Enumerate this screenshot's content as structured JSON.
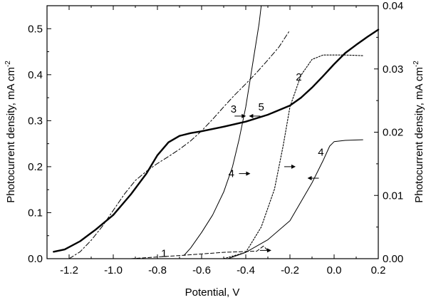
{
  "chart_data": {
    "type": "line",
    "title": "",
    "xlabel": "Potential, V",
    "ylabel_left": "Photocurrent density, mA cm",
    "ylabel_right": "Photocurrent density, mA cm",
    "ylabel_sup": "-2",
    "xlim": [
      -1.3,
      0.2
    ],
    "ylim_left": [
      0,
      0.55
    ],
    "ylim_right": [
      0,
      0.04
    ],
    "x_ticks": [
      "-1.2",
      "-1.0",
      "-0.8",
      "-0.6",
      "-0.4",
      "-0.2",
      "0.0",
      "0.2"
    ],
    "y_ticks_left": [
      "0.0",
      "0.1",
      "0.2",
      "0.3",
      "0.4",
      "0.5"
    ],
    "y_ticks_right": [
      "0.00",
      "0.01",
      "0.02",
      "0.03",
      "0.04"
    ],
    "grid": false,
    "legend": "none",
    "series": [
      {
        "axis": "left",
        "style": "thick",
        "points": [
          [
            -1.27,
            0.015
          ],
          [
            -1.22,
            0.02
          ],
          [
            -1.15,
            0.038
          ],
          [
            -1.08,
            0.063
          ],
          [
            -1.0,
            0.095
          ],
          [
            -0.92,
            0.14
          ],
          [
            -0.85,
            0.185
          ],
          [
            -0.8,
            0.225
          ],
          [
            -0.75,
            0.253
          ],
          [
            -0.7,
            0.267
          ],
          [
            -0.65,
            0.273
          ],
          [
            -0.6,
            0.277
          ],
          [
            -0.5,
            0.287
          ],
          [
            -0.4,
            0.298
          ],
          [
            -0.3,
            0.313
          ],
          [
            -0.2,
            0.333
          ],
          [
            -0.15,
            0.35
          ],
          [
            -0.1,
            0.372
          ],
          [
            -0.05,
            0.397
          ],
          [
            0.0,
            0.423
          ],
          [
            0.05,
            0.447
          ],
          [
            0.1,
            0.465
          ],
          [
            0.15,
            0.482
          ],
          [
            0.2,
            0.498
          ]
        ]
      },
      {
        "axis": "left",
        "style": "dash-dot",
        "points": [
          [
            -1.2,
            0.0
          ],
          [
            -1.15,
            0.015
          ],
          [
            -1.1,
            0.04
          ],
          [
            -1.05,
            0.07
          ],
          [
            -1.0,
            0.105
          ],
          [
            -0.95,
            0.14
          ],
          [
            -0.9,
            0.17
          ],
          [
            -0.85,
            0.19
          ],
          [
            -0.8,
            0.207
          ],
          [
            -0.75,
            0.222
          ],
          [
            -0.7,
            0.238
          ],
          [
            -0.65,
            0.256
          ],
          [
            -0.6,
            0.278
          ],
          [
            -0.55,
            0.303
          ],
          [
            -0.5,
            0.33
          ],
          [
            -0.45,
            0.356
          ],
          [
            -0.4,
            0.38
          ],
          [
            -0.35,
            0.405
          ],
          [
            -0.3,
            0.432
          ],
          [
            -0.25,
            0.46
          ],
          [
            -0.2,
            0.497
          ]
        ]
      },
      {
        "axis": "left",
        "style": "thin",
        "points": [
          [
            -0.68,
            0.007
          ],
          [
            -0.65,
            0.023
          ],
          [
            -0.6,
            0.057
          ],
          [
            -0.55,
            0.095
          ],
          [
            -0.5,
            0.145
          ],
          [
            -0.46,
            0.2
          ],
          [
            -0.43,
            0.26
          ],
          [
            -0.4,
            0.33
          ],
          [
            -0.38,
            0.39
          ],
          [
            -0.36,
            0.45
          ],
          [
            -0.34,
            0.51
          ],
          [
            -0.33,
            0.55
          ]
        ]
      },
      {
        "axis": "right",
        "style": "dotted",
        "points": [
          [
            -0.5,
            0.0
          ],
          [
            -0.4,
            0.001
          ],
          [
            -0.33,
            0.005
          ],
          [
            -0.27,
            0.011
          ],
          [
            -0.23,
            0.018
          ],
          [
            -0.2,
            0.024
          ],
          [
            -0.15,
            0.029
          ],
          [
            -0.1,
            0.0315
          ],
          [
            -0.05,
            0.0322
          ],
          [
            0.0,
            0.0322
          ],
          [
            0.05,
            0.0322
          ],
          [
            0.13,
            0.0321
          ]
        ]
      },
      {
        "axis": "right",
        "style": "thin",
        "points": [
          [
            -0.48,
            0.0
          ],
          [
            -0.4,
            0.001
          ],
          [
            -0.3,
            0.003
          ],
          [
            -0.2,
            0.006
          ],
          [
            -0.15,
            0.009
          ],
          [
            -0.1,
            0.012
          ],
          [
            -0.05,
            0.0155
          ],
          [
            -0.02,
            0.0178
          ],
          [
            0.0,
            0.0185
          ],
          [
            0.05,
            0.0187
          ],
          [
            0.13,
            0.0188
          ]
        ]
      },
      {
        "axis": "right",
        "style": "dashed",
        "points": [
          [
            -0.92,
            0.0
          ],
          [
            -0.7,
            0.0005
          ],
          [
            -0.5,
            0.001
          ],
          [
            -0.35,
            0.0012
          ],
          [
            -0.32,
            0.002
          ],
          [
            -0.3,
            0.0013
          ]
        ]
      }
    ],
    "annotations": [
      {
        "text": "1",
        "x": -0.77,
        "y_left": 0.012
      },
      {
        "text": "2",
        "x": -0.16,
        "y_left": 0.395
      },
      {
        "text": "3",
        "x": -0.455,
        "y_left": 0.325
      },
      {
        "text": "4",
        "x": -0.465,
        "y_left": 0.185
      },
      {
        "text": "4",
        "x": -0.06,
        "y_left": 0.232
      },
      {
        "text": "5",
        "x": -0.33,
        "y_left": 0.33
      }
    ],
    "arrows": [
      {
        "direction": "right",
        "x": -0.425,
        "y_left": 0.31
      },
      {
        "direction": "left",
        "x": -0.36,
        "y_left": 0.31
      },
      {
        "direction": "right",
        "x": -0.405,
        "y_left": 0.185
      },
      {
        "direction": "right",
        "x": -0.2,
        "y_left": 0.2
      },
      {
        "direction": "left",
        "x": -0.095,
        "y_left": 0.175
      },
      {
        "direction": "right",
        "x": -0.31,
        "y_left": 0.018
      }
    ]
  }
}
